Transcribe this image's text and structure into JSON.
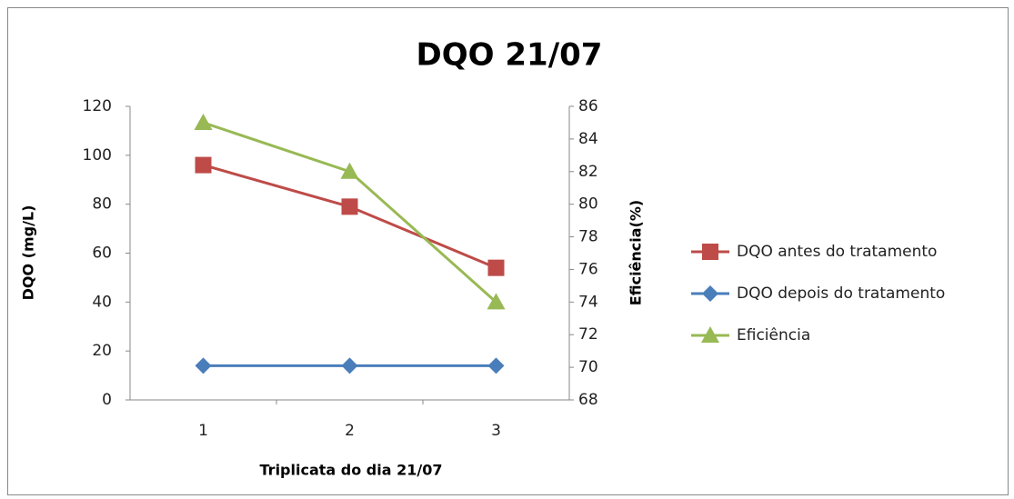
{
  "chart_data": {
    "type": "line",
    "title": "DQO 21/07",
    "x_label": "Triplicata do dia 21/07",
    "y_label": "DQO (mg/L)",
    "y2_label": "Eficiência(%)",
    "categories": [
      "1",
      "2",
      "3"
    ],
    "series": [
      {
        "name": "DQO antes do tratamento",
        "color": "#be4b48",
        "marker": "square",
        "values": [
          96,
          79,
          54
        ]
      },
      {
        "name": "DQO depois do tratamento",
        "color": "#4a7ebb",
        "marker": "diamond",
        "values": [
          14,
          14,
          14
        ]
      },
      {
        "name": "Eficiência",
        "color": "#98b954",
        "marker": "triangle",
        "axis": "y2",
        "values": [
          85,
          82,
          74
        ]
      }
    ],
    "ylim": [
      0,
      120
    ],
    "yticks": [
      0,
      20,
      40,
      60,
      80,
      100,
      120
    ],
    "y2lim": [
      68,
      86
    ],
    "y2ticks": [
      68,
      70,
      72,
      74,
      76,
      78,
      80,
      82,
      84,
      86
    ],
    "grid": false,
    "legend": "right"
  }
}
